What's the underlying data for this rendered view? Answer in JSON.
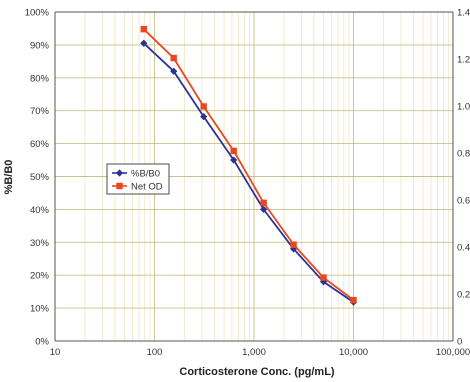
{
  "chart_data": {
    "type": "line",
    "xlabel": "Corticosterone Conc. (pg/mL)",
    "ylabel": "%B/B0",
    "x_scale": "log",
    "xlim": [
      10,
      100000
    ],
    "ylim": [
      0,
      100
    ],
    "y2lim": [
      0,
      1.4
    ],
    "x_ticks": [
      "10",
      "100",
      "1,000",
      "10,000",
      "100,000"
    ],
    "y_ticks": [
      "0%",
      "10%",
      "20%",
      "30%",
      "40%",
      "50%",
      "60%",
      "70%",
      "80%",
      "90%",
      "100%"
    ],
    "y2_ticks": [
      "0",
      "0.2",
      "0.4",
      "0.6",
      "0.8",
      "1.0",
      "1.2",
      "1.4"
    ],
    "grid": true,
    "legend_position": "center-left",
    "series": [
      {
        "name": "%B/B0",
        "axis": "left",
        "color": "#2b3494",
        "marker": "diamond",
        "x": [
          78,
          156,
          312,
          625,
          1250,
          2500,
          5000,
          10000
        ],
        "y": [
          90.5,
          82,
          68.2,
          55,
          40,
          28,
          18,
          11.8
        ]
      },
      {
        "name": "Net OD",
        "axis": "right",
        "color": "#e8481f",
        "marker": "square",
        "x": [
          78,
          156,
          312,
          625,
          1250,
          2500,
          5000,
          10000
        ],
        "y": [
          1.327,
          1.204,
          0.998,
          0.809,
          0.588,
          0.41,
          0.27,
          0.174
        ]
      }
    ]
  }
}
